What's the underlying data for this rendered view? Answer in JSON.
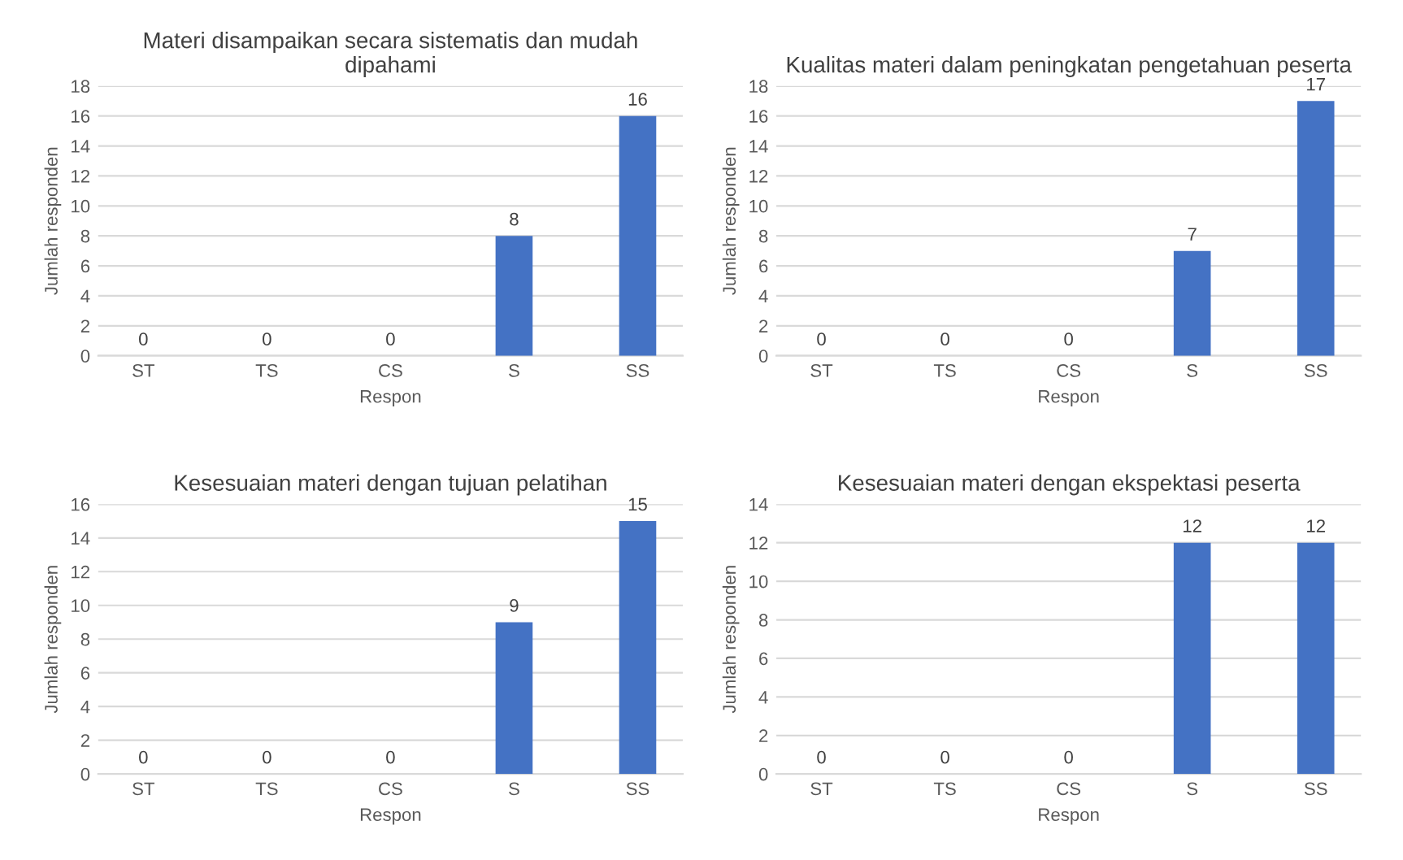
{
  "chart_data": [
    {
      "type": "bar",
      "title": "Materi disampaikan secara sistematis dan mudah\ndipahami",
      "xlabel": "Respon",
      "ylabel": "Jumlah responden",
      "categories": [
        "ST",
        "TS",
        "CS",
        "S",
        "SS"
      ],
      "values": [
        0,
        0,
        0,
        8,
        16
      ],
      "color": "#4472c4",
      "ylim": [
        0,
        18
      ],
      "yticks": [
        0,
        2,
        4,
        6,
        8,
        10,
        12,
        14,
        16,
        18
      ],
      "grid": "y",
      "data_labels": true
    },
    {
      "type": "bar",
      "title": "Kualitas materi dalam peningkatan pengetahuan peserta",
      "xlabel": "Respon",
      "ylabel": "Jumlah responden",
      "categories": [
        "ST",
        "TS",
        "CS",
        "S",
        "SS"
      ],
      "values": [
        0,
        0,
        0,
        7,
        17
      ],
      "color": "#4472c4",
      "ylim": [
        0,
        18
      ],
      "yticks": [
        0,
        2,
        4,
        6,
        8,
        10,
        12,
        14,
        16,
        18
      ],
      "grid": "y",
      "data_labels": true
    },
    {
      "type": "bar",
      "title": "Kesesuaian materi dengan tujuan pelatihan",
      "xlabel": "Respon",
      "ylabel": "Jumlah responden",
      "categories": [
        "ST",
        "TS",
        "CS",
        "S",
        "SS"
      ],
      "values": [
        0,
        0,
        0,
        9,
        15
      ],
      "color": "#4472c4",
      "ylim": [
        0,
        16
      ],
      "yticks": [
        0,
        2,
        4,
        6,
        8,
        10,
        12,
        14,
        16
      ],
      "grid": "y",
      "data_labels": true
    },
    {
      "type": "bar",
      "title": "Kesesuaian materi dengan ekspektasi peserta",
      "xlabel": "Respon",
      "ylabel": "Jumlah responden",
      "categories": [
        "ST",
        "TS",
        "CS",
        "S",
        "SS"
      ],
      "values": [
        0,
        0,
        0,
        12,
        12
      ],
      "color": "#4472c4",
      "ylim": [
        0,
        14
      ],
      "yticks": [
        0,
        2,
        4,
        6,
        8,
        10,
        12,
        14
      ],
      "grid": "y",
      "data_labels": true
    }
  ]
}
